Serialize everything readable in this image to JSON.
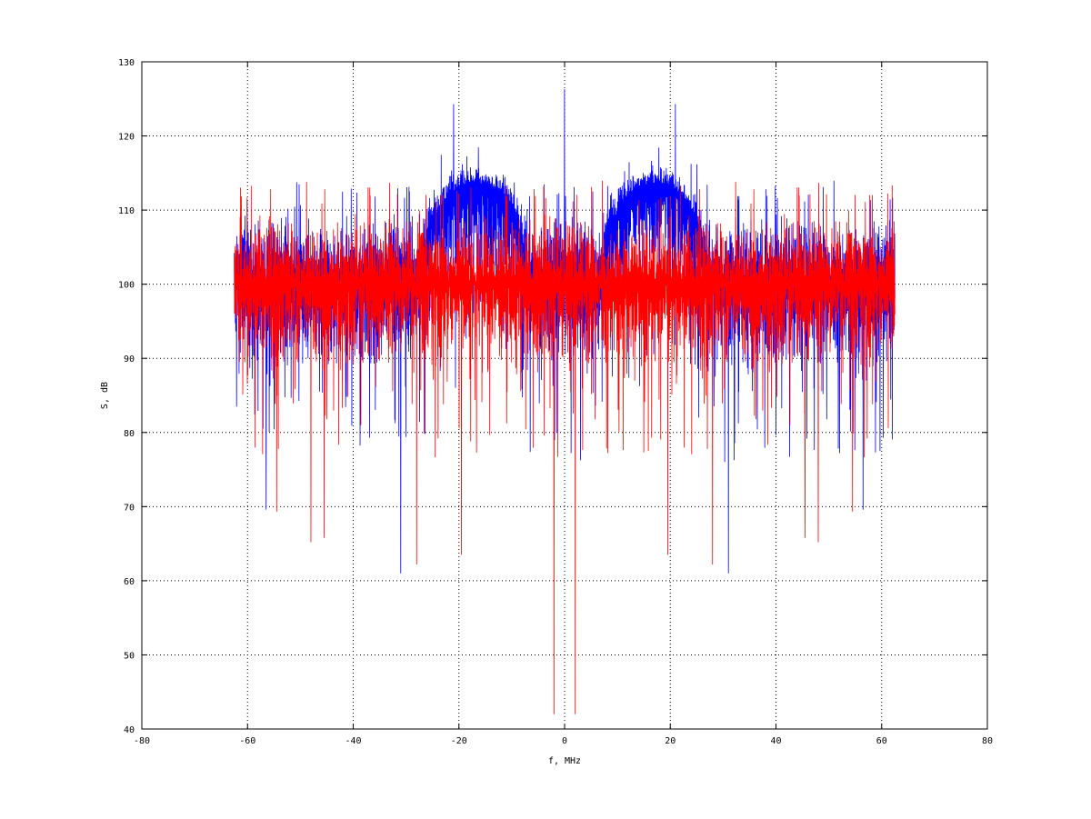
{
  "chart_data": {
    "type": "line",
    "title": "",
    "xlabel": "f, MHz",
    "ylabel": "S, dB",
    "xlim": [
      -80,
      80
    ],
    "ylim": [
      40,
      130
    ],
    "xticks": [
      "-80",
      "-60",
      "-40",
      "-20",
      "0",
      "20",
      "40",
      "60",
      "80"
    ],
    "yticks": [
      "40",
      "50",
      "60",
      "70",
      "80",
      "90",
      "100",
      "110",
      "120",
      "130"
    ],
    "grid": true,
    "legend": "none",
    "x_range_data": [
      -62.5,
      62.5
    ],
    "series": [
      {
        "color": "#0000ff",
        "description": "spectrum with two lobes",
        "noise_floor_level": 100,
        "noise_floor_band": [
          86,
          111
        ],
        "lobes": [
          {
            "center": -17,
            "half_width": 10,
            "mean_peak": 116,
            "max_peak": 124.3
          },
          {
            "center": 17,
            "half_width": 10,
            "mean_peak": 116,
            "max_peak": 124.3
          }
        ],
        "center_spike": {
          "x": 0,
          "y": 126.3
        },
        "deep_dips": [
          {
            "x": -56.5,
            "y": 69.6
          },
          {
            "x": -31,
            "y": 61
          },
          {
            "x": 31,
            "y": 61
          },
          {
            "x": 56.5,
            "y": 69.6
          }
        ]
      },
      {
        "color": "#ff0000",
        "description": "flat noise spectrum",
        "noise_floor_level": 100,
        "noise_floor_band": [
          86,
          111
        ],
        "occasional_max": 113.5,
        "deep_dips": [
          {
            "x": -2,
            "y": 42
          },
          {
            "x": 2,
            "y": 42
          },
          {
            "x": -48,
            "y": 65.2
          },
          {
            "x": -45.5,
            "y": 65.8
          },
          {
            "x": -28,
            "y": 62.2
          },
          {
            "x": -19.5,
            "y": 63.5
          },
          {
            "x": 19.5,
            "y": 63.5
          },
          {
            "x": 28,
            "y": 62.2
          },
          {
            "x": 45.5,
            "y": 65.8
          },
          {
            "x": 48,
            "y": 65.2
          },
          {
            "x": -54.5,
            "y": 69.3
          },
          {
            "x": 54.5,
            "y": 69.3
          }
        ]
      }
    ]
  }
}
